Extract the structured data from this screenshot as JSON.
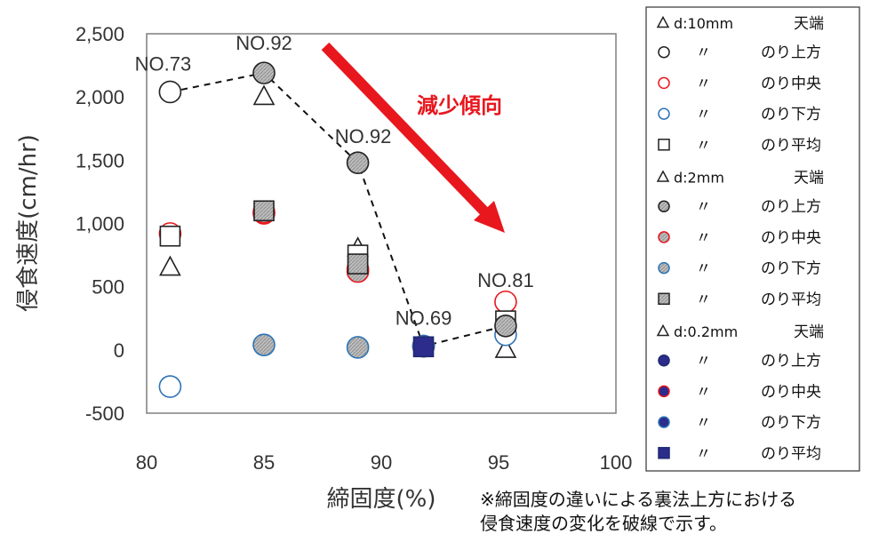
{
  "chart_data": {
    "type": "scatter",
    "xlabel": "締固度(%)",
    "ylabel": "侵食速度(cm/hr)",
    "xlim": [
      80,
      100
    ],
    "ylim": [
      -500,
      2500
    ],
    "x_ticks": [
      "80",
      "85",
      "90",
      "95",
      "100"
    ],
    "y_ticks": [
      "-500",
      "0",
      "500",
      "1,000",
      "1,500",
      "2,000",
      "2,500"
    ],
    "grid": false,
    "legend_position": "right",
    "legend_groups": [
      {
        "header": "d:10mm",
        "header_pos": "天端",
        "entries": [
          {
            "ditto": "〃",
            "label": "のり上方"
          },
          {
            "ditto": "〃",
            "label": "のり中央"
          },
          {
            "ditto": "〃",
            "label": "のり下方"
          },
          {
            "ditto": "〃",
            "label": "のり平均"
          }
        ]
      },
      {
        "header": "d:2mm",
        "header_pos": "天端",
        "entries": [
          {
            "ditto": "〃",
            "label": "のり上方"
          },
          {
            "ditto": "〃",
            "label": "のり中央"
          },
          {
            "ditto": "〃",
            "label": "のり下方"
          },
          {
            "ditto": "〃",
            "label": "のり平均"
          }
        ]
      },
      {
        "header": "d:0.2mm",
        "header_pos": "天端",
        "entries": [
          {
            "ditto": "〃",
            "label": "のり上方"
          },
          {
            "ditto": "〃",
            "label": "のり中央"
          },
          {
            "ditto": "〃",
            "label": "のり下方"
          },
          {
            "ditto": "〃",
            "label": "のり平均"
          }
        ]
      }
    ],
    "series": [
      {
        "x": [
          81,
          85,
          89,
          95.3
        ],
        "y": [
          650,
          2000,
          800,
          0
        ],
        "marker": "triangle",
        "fill": "#ffffff",
        "stroke": "#222222"
      },
      {
        "x": [
          81
        ],
        "y": [
          2040
        ],
        "marker": "circle",
        "fill": "#ffffff",
        "stroke": "#222222"
      },
      {
        "x": [
          81,
          85,
          89,
          95.3
        ],
        "y": [
          920,
          1080,
          640,
          380
        ],
        "marker": "circle",
        "fill": "#ffffff",
        "stroke": "#e8171e"
      },
      {
        "x": [
          81,
          95.3
        ],
        "y": [
          -290,
          120
        ],
        "marker": "circle",
        "fill": "#ffffff",
        "stroke": "#2e74b5"
      },
      {
        "x": [
          81,
          89,
          95.3
        ],
        "y": [
          900,
          750,
          230
        ],
        "marker": "square",
        "fill": "#ffffff",
        "stroke": "#222222"
      },
      {
        "x": [
          85,
          89,
          95.3
        ],
        "y": [
          2190,
          1480,
          190
        ],
        "marker": "circle",
        "fill": "#b3b3b3",
        "stroke": "#222222"
      },
      {
        "x": [
          85,
          89
        ],
        "y": [
          1090,
          620
        ],
        "marker": "circle",
        "fill": "#b3b3b3",
        "stroke": "#e8171e"
      },
      {
        "x": [
          85,
          89
        ],
        "y": [
          40,
          20
        ],
        "marker": "circle",
        "fill": "#b3b3b3",
        "stroke": "#2e74b5"
      },
      {
        "x": [
          85,
          89
        ],
        "y": [
          1100,
          680
        ],
        "marker": "square",
        "fill": "#b3b3b3",
        "stroke": "#222222"
      },
      {
        "x": [
          91.8
        ],
        "y": [
          30
        ],
        "marker": "circle",
        "fill": "#2c2c8c",
        "stroke": "#1e2a6e"
      },
      {
        "x": [
          91.8
        ],
        "y": [
          30
        ],
        "marker": "circle",
        "fill": "#2c2c8c",
        "stroke": "#e8171e"
      },
      {
        "x": [
          91.8
        ],
        "y": [
          30
        ],
        "marker": "circle",
        "fill": "#2c2c8c",
        "stroke": "#2e74b5"
      },
      {
        "x": [
          91.8
        ],
        "y": [
          25
        ],
        "marker": "square",
        "fill": "#2c2c8c",
        "stroke": "#1e2a6e"
      }
    ],
    "dashed_line": {
      "x": [
        81,
        85,
        89,
        91.8,
        95.3
      ],
      "y": [
        2040,
        2190,
        1480,
        30,
        190
      ]
    },
    "annotations": [
      {
        "text": "NO.73",
        "x": 81,
        "y": 2040
      },
      {
        "text": "NO.92",
        "x": 85,
        "y": 2190
      },
      {
        "text": "NO.92",
        "x": 89,
        "y": 1480
      },
      {
        "text": "NO.69",
        "x": 91.8,
        "y": 30
      },
      {
        "text": "NO.81",
        "x": 95.3,
        "y": 190
      }
    ],
    "trend": {
      "text": "減少傾向",
      "color": "#e8171e"
    }
  },
  "note_lines": [
    "※締固度の違いによる裏法上方における",
    "侵食速度の変化を破線で示す。"
  ]
}
